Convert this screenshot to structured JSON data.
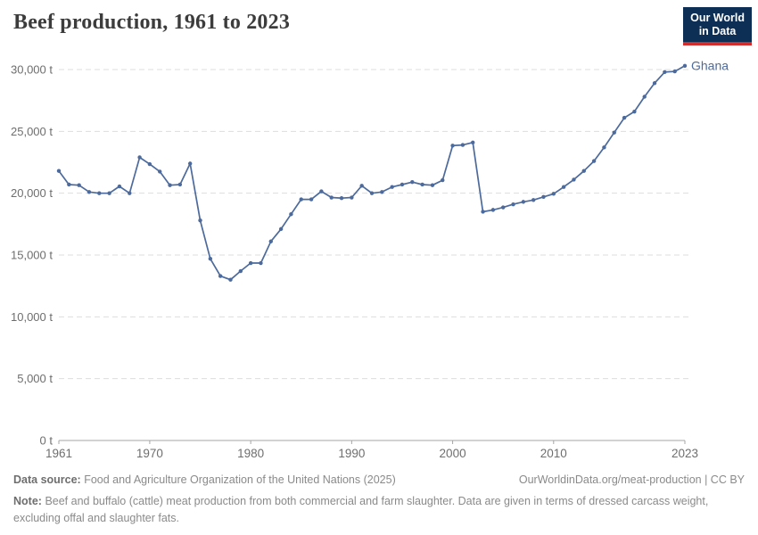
{
  "header": {
    "title": "Beef production, 1961 to 2023",
    "logo_line1": "Our World",
    "logo_line2": "in Data"
  },
  "chart_data": {
    "type": "line",
    "title": "Beef production, 1961 to 2023",
    "unit": "t",
    "xlabel": "",
    "ylabel": "",
    "xlim": [
      1961,
      2023
    ],
    "ylim": [
      0,
      30000
    ],
    "xticks": [
      1961,
      1970,
      1980,
      1990,
      2000,
      2010,
      2023
    ],
    "yticks": [
      0,
      5000,
      10000,
      15000,
      20000,
      25000,
      30000
    ],
    "grid": "horizontal-dashed",
    "legend": "end-of-line-label",
    "x": [
      1961,
      1962,
      1963,
      1964,
      1965,
      1966,
      1967,
      1968,
      1969,
      1970,
      1971,
      1972,
      1973,
      1974,
      1975,
      1976,
      1977,
      1978,
      1979,
      1980,
      1981,
      1982,
      1983,
      1984,
      1985,
      1986,
      1987,
      1988,
      1989,
      1990,
      1991,
      1992,
      1993,
      1994,
      1995,
      1996,
      1997,
      1998,
      1999,
      2000,
      2001,
      2002,
      2003,
      2004,
      2005,
      2006,
      2007,
      2008,
      2009,
      2010,
      2011,
      2012,
      2013,
      2014,
      2015,
      2016,
      2017,
      2018,
      2019,
      2020,
      2021,
      2022,
      2023
    ],
    "series": [
      {
        "name": "Ghana",
        "color": "#4c6a9c",
        "values": [
          21800,
          20700,
          20650,
          20100,
          20000,
          20000,
          20550,
          20000,
          22900,
          22350,
          21750,
          20650,
          20700,
          22400,
          17800,
          14700,
          13300,
          13000,
          13700,
          14350,
          14350,
          16100,
          17100,
          18300,
          19500,
          19500,
          20150,
          19650,
          19600,
          19650,
          20600,
          20000,
          20100,
          20500,
          20700,
          20900,
          20700,
          20650,
          21050,
          23850,
          23900,
          24100,
          18500,
          18650,
          18850,
          19100,
          19300,
          19450,
          19700,
          19950,
          20500,
          21100,
          21800,
          22600,
          23700,
          24900,
          26100,
          26600,
          27800,
          28900,
          29800,
          29850,
          30300
        ]
      }
    ]
  },
  "footer": {
    "source_label": "Data source:",
    "source_text": "Food and Agriculture Organization of the United Nations (2025)",
    "credit": "OurWorldinData.org/meat-production | CC BY",
    "note_label": "Note:",
    "note_text": "Beef and buffalo (cattle) meat production from both commercial and farm slaughter. Data are given in terms of dressed carcass weight, excluding offal and slaughter fats."
  },
  "colors": {
    "line": "#4c6a9c",
    "grid": "#dddddd",
    "axis": "#a5a5a5",
    "tick_text": "#6e6e6e",
    "title_text": "#3c3c3c",
    "footer_text": "#8a8a8a",
    "logo_bg": "#0e2f55",
    "logo_accent": "#d22e2e",
    "background": "#ffffff"
  }
}
